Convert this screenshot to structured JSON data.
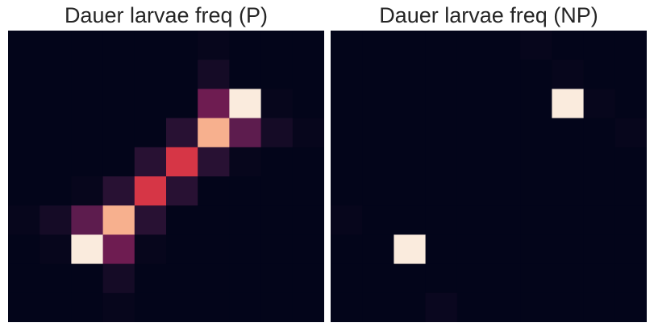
{
  "chart_data": [
    {
      "type": "heatmap",
      "title": "Dauer larvae freq (P)",
      "rows": 10,
      "cols": 10,
      "values": [
        [
          0,
          0,
          0,
          0,
          0,
          0,
          0.01,
          0,
          0,
          0
        ],
        [
          0,
          0,
          0,
          0,
          0,
          0,
          0.05,
          0,
          0,
          0
        ],
        [
          0,
          0,
          0,
          0,
          0,
          0,
          0.28,
          1.0,
          0.01,
          0
        ],
        [
          0,
          0,
          0,
          0,
          0,
          0.1,
          0.85,
          0.24,
          0.05,
          0.01
        ],
        [
          0,
          0,
          0,
          0,
          0.1,
          0.55,
          0.1,
          0.01,
          0,
          0
        ],
        [
          0,
          0,
          0.01,
          0.1,
          0.55,
          0.1,
          0,
          0,
          0,
          0
        ],
        [
          0.01,
          0.05,
          0.24,
          0.85,
          0.1,
          0,
          0,
          0,
          0,
          0
        ],
        [
          0,
          0.01,
          1.0,
          0.28,
          0.01,
          0,
          0,
          0,
          0,
          0
        ],
        [
          0,
          0,
          0,
          0.05,
          0,
          0,
          0,
          0,
          0,
          0
        ],
        [
          0,
          0,
          0,
          0.01,
          0,
          0,
          0,
          0,
          0,
          0
        ]
      ],
      "vmin": 0,
      "vmax": 1,
      "colormap": [
        "#03051a",
        "#4c1d4b",
        "#a11a5b",
        "#e83f3f",
        "#f69c73",
        "#faebdd"
      ],
      "grid": false,
      "axes_visible": false
    },
    {
      "type": "heatmap",
      "title": "Dauer larvae freq (NP)",
      "rows": 10,
      "cols": 10,
      "values": [
        [
          0,
          0,
          0,
          0,
          0,
          0,
          0.01,
          0,
          0,
          0
        ],
        [
          0,
          0,
          0,
          0,
          0,
          0,
          0,
          0.01,
          0,
          0
        ],
        [
          0,
          0,
          0,
          0,
          0,
          0,
          0,
          1.0,
          0.01,
          0
        ],
        [
          0,
          0,
          0,
          0,
          0,
          0,
          0,
          0,
          0,
          0.01
        ],
        [
          0,
          0,
          0,
          0,
          0,
          0,
          0,
          0,
          0,
          0
        ],
        [
          0,
          0,
          0,
          0,
          0,
          0,
          0,
          0,
          0,
          0
        ],
        [
          0.01,
          0,
          0,
          0,
          0,
          0,
          0,
          0,
          0,
          0
        ],
        [
          0,
          0,
          1.0,
          0,
          0,
          0,
          0,
          0,
          0,
          0
        ],
        [
          0,
          0,
          0,
          0,
          0,
          0,
          0,
          0,
          0,
          0
        ],
        [
          0,
          0,
          0,
          0.02,
          0,
          0,
          0,
          0,
          0,
          0
        ]
      ],
      "vmin": 0,
      "vmax": 1,
      "colormap": [
        "#03051a",
        "#4c1d4b",
        "#a11a5b",
        "#e83f3f",
        "#f69c73",
        "#faebdd"
      ],
      "grid": false,
      "axes_visible": false
    }
  ]
}
